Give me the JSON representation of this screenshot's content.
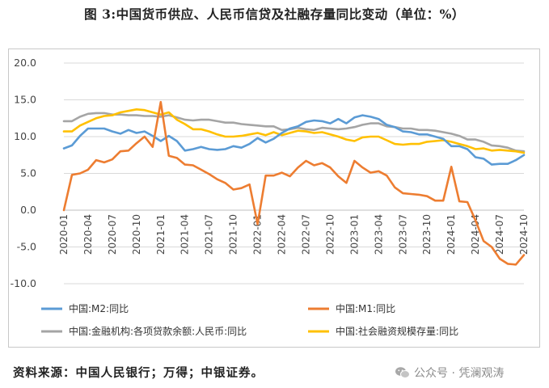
{
  "title": "图 3:中国货币供应、人民币信贷及社融存量同比变动（单位：%）",
  "source_note": "资料来源：中国人民银行；万得；中银证券。",
  "watermark": "公众号 · 凭澜观涛",
  "chart_data": {
    "type": "line",
    "title": "",
    "xlabel": "",
    "ylabel": "",
    "ylim": [
      -10,
      20
    ],
    "yticks": [
      "20.0",
      "15.0",
      "10.0",
      "5.0",
      "0.0",
      "-5.0",
      "-10.0"
    ],
    "ytick_values": [
      20,
      15,
      10,
      5,
      0,
      -5,
      -10
    ],
    "grid": true,
    "legend_position": "bottom",
    "x": [
      "2020-01",
      "2020-02",
      "2020-03",
      "2020-04",
      "2020-05",
      "2020-06",
      "2020-07",
      "2020-08",
      "2020-09",
      "2020-10",
      "2020-11",
      "2020-12",
      "2021-01",
      "2021-02",
      "2021-03",
      "2021-04",
      "2021-05",
      "2021-06",
      "2021-07",
      "2021-08",
      "2021-09",
      "2021-10",
      "2021-11",
      "2021-12",
      "2022-01",
      "2022-02",
      "2022-03",
      "2022-04",
      "2022-05",
      "2022-06",
      "2022-07",
      "2022-08",
      "2022-09",
      "2022-10",
      "2022-11",
      "2022-12",
      "2023-01",
      "2023-02",
      "2023-03",
      "2023-04",
      "2023-05",
      "2023-06",
      "2023-07",
      "2023-08",
      "2023-09",
      "2023-10",
      "2023-11",
      "2023-12",
      "2024-01",
      "2024-02",
      "2024-03",
      "2024-04",
      "2024-05",
      "2024-06",
      "2024-07",
      "2024-08",
      "2024-09",
      "2024-10"
    ],
    "x_tick_labels": [
      "2020-01",
      "2020-04",
      "2020-07",
      "2020-10",
      "2021-01",
      "2021-04",
      "2021-07",
      "2021-10",
      "2022-01",
      "2022-04",
      "2022-07",
      "2022-10",
      "2023-01",
      "2023-04",
      "2023-07",
      "2023-10",
      "2024-01",
      "2024-04",
      "2024-07",
      "2024-10"
    ],
    "series": [
      {
        "name": "中国:M2:同比",
        "color": "#5b9bd5",
        "values": [
          8.4,
          8.8,
          10.1,
          11.1,
          11.1,
          11.1,
          10.7,
          10.4,
          10.9,
          10.5,
          10.7,
          10.1,
          9.4,
          10.1,
          9.4,
          8.1,
          8.3,
          8.6,
          8.3,
          8.2,
          8.3,
          8.7,
          8.5,
          9.0,
          9.8,
          9.2,
          9.7,
          10.5,
          11.1,
          11.4,
          12.0,
          12.2,
          12.1,
          11.8,
          12.4,
          11.8,
          12.6,
          12.9,
          12.7,
          12.4,
          11.6,
          11.3,
          10.7,
          10.6,
          10.3,
          10.3,
          10.0,
          9.7,
          8.7,
          8.7,
          8.3,
          7.2,
          7.0,
          6.2,
          6.3,
          6.3,
          6.8,
          7.5
        ]
      },
      {
        "name": "中国:M1:同比",
        "color": "#ed7d31",
        "values": [
          0.0,
          4.8,
          5.0,
          5.5,
          6.8,
          6.5,
          6.9,
          8.0,
          8.1,
          9.1,
          10.0,
          8.6,
          14.7,
          7.4,
          7.1,
          6.2,
          6.1,
          5.5,
          4.9,
          4.2,
          3.7,
          2.8,
          3.0,
          3.5,
          -1.9,
          4.7,
          4.7,
          5.1,
          4.6,
          5.8,
          6.7,
          6.1,
          6.4,
          5.8,
          4.6,
          3.7,
          6.7,
          5.8,
          5.1,
          5.3,
          4.7,
          3.1,
          2.3,
          2.2,
          2.1,
          1.9,
          1.3,
          1.3,
          5.9,
          1.2,
          1.1,
          -1.4,
          -4.2,
          -5.0,
          -6.6,
          -7.3,
          -7.4,
          -6.1
        ]
      },
      {
        "name": "中国:金融机构:各项贷款余额:人民币:同比",
        "color": "#a5a5a5",
        "values": [
          12.1,
          12.1,
          12.7,
          13.1,
          13.2,
          13.2,
          13.0,
          13.0,
          12.9,
          12.9,
          12.8,
          12.8,
          12.7,
          12.9,
          12.6,
          12.3,
          12.2,
          12.3,
          12.3,
          12.1,
          11.9,
          11.9,
          11.7,
          11.6,
          11.5,
          11.4,
          11.4,
          10.9,
          11.0,
          11.2,
          11.0,
          10.9,
          11.2,
          11.1,
          11.0,
          11.1,
          11.3,
          11.6,
          11.8,
          11.8,
          11.4,
          11.3,
          11.1,
          11.1,
          10.9,
          10.9,
          10.8,
          10.6,
          10.4,
          10.1,
          9.6,
          9.6,
          9.3,
          8.8,
          8.7,
          8.5,
          8.1,
          8.0
        ]
      },
      {
        "name": "中国:社会融资规模存量:同比",
        "color": "#ffc000",
        "values": [
          10.7,
          10.7,
          11.5,
          12.0,
          12.5,
          12.8,
          12.9,
          13.3,
          13.5,
          13.7,
          13.6,
          13.3,
          13.0,
          13.3,
          12.3,
          11.7,
          11.0,
          11.0,
          10.7,
          10.3,
          10.0,
          10.0,
          10.1,
          10.3,
          10.5,
          10.2,
          10.6,
          10.2,
          10.5,
          10.8,
          10.7,
          10.5,
          10.6,
          10.3,
          10.0,
          9.6,
          9.4,
          9.9,
          10.0,
          10.0,
          9.5,
          9.0,
          8.9,
          9.0,
          9.0,
          9.3,
          9.4,
          9.5,
          9.3,
          9.0,
          8.7,
          8.3,
          8.4,
          8.1,
          8.2,
          8.1,
          8.0,
          7.8
        ]
      }
    ]
  }
}
